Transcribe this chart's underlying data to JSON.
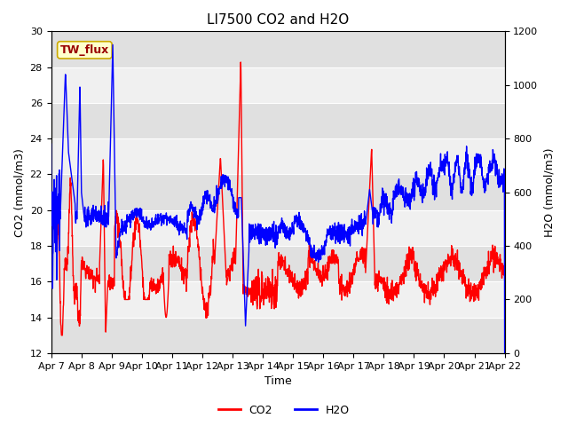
{
  "title": "LI7500 CO2 and H2O",
  "xlabel": "Time",
  "ylabel_left": "CO2 (mmol/m3)",
  "ylabel_right": "H2O (mmol/m3)",
  "ylim_left": [
    12,
    30
  ],
  "ylim_right": [
    0,
    1200
  ],
  "yticks_left": [
    12,
    14,
    16,
    18,
    20,
    22,
    24,
    26,
    28,
    30
  ],
  "yticks_right": [
    0,
    200,
    400,
    600,
    800,
    1000,
    1200
  ],
  "xtick_labels": [
    "Apr 7",
    "Apr 8",
    "Apr 9",
    "Apr 10",
    "Apr 11",
    "Apr 12",
    "Apr 13",
    "Apr 14",
    "Apr 15",
    "Apr 16",
    "Apr 17",
    "Apr 18",
    "Apr 19",
    "Apr 20",
    "Apr 21",
    "Apr 22"
  ],
  "annotation_text": "TW_flux",
  "annotation_bg": "#ffffcc",
  "annotation_border": "#ccaa00",
  "annotation_text_color": "#990000",
  "co2_color": "#ff0000",
  "h2o_color": "#0000ff",
  "fig_bg_color": "#ffffff",
  "band_light": "#f0f0f0",
  "band_dark": "#e0e0e0",
  "grid_color": "#ffffff",
  "title_fontsize": 11,
  "axis_label_fontsize": 9,
  "tick_fontsize": 8,
  "legend_fontsize": 9,
  "line_width": 1.0,
  "n_points": 2000
}
